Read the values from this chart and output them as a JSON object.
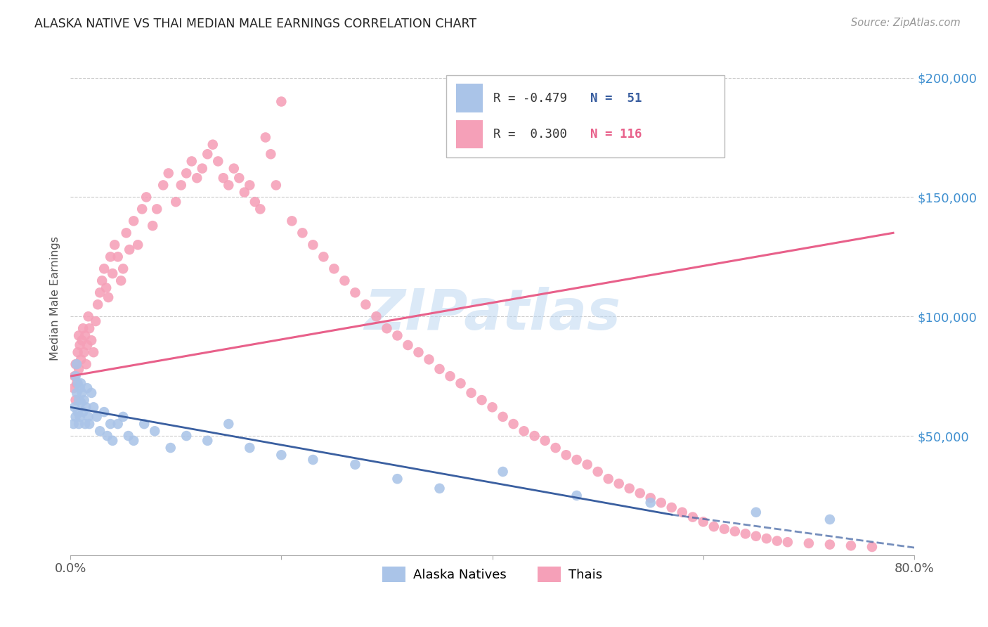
{
  "title": "ALASKA NATIVE VS THAI MEDIAN MALE EARNINGS CORRELATION CHART",
  "source": "Source: ZipAtlas.com",
  "ylabel": "Median Male Earnings",
  "watermark": "ZIPatlas",
  "legend_labels": [
    "Alaska Natives",
    "Thais"
  ],
  "legend_r_alaska": "R = -0.479",
  "legend_n_alaska": "N =  51",
  "legend_r_thai": "R =  0.300",
  "legend_n_thai": "N = 116",
  "color_alaska": "#aac4e8",
  "color_thai": "#f5a0b8",
  "color_alaska_line": "#3a5fa0",
  "color_thai_line": "#e8608a",
  "color_label_right": "#4090d0",
  "ytick_labels": [
    "$50,000",
    "$100,000",
    "$150,000",
    "$200,000"
  ],
  "ytick_values": [
    50000,
    100000,
    150000,
    200000
  ],
  "xmin": 0.0,
  "xmax": 0.8,
  "ymin": 0,
  "ymax": 215000,
  "alaska_scatter_x": [
    0.003,
    0.004,
    0.005,
    0.005,
    0.006,
    0.006,
    0.007,
    0.007,
    0.008,
    0.008,
    0.009,
    0.009,
    0.01,
    0.01,
    0.011,
    0.012,
    0.013,
    0.014,
    0.015,
    0.016,
    0.017,
    0.018,
    0.02,
    0.022,
    0.025,
    0.028,
    0.032,
    0.035,
    0.038,
    0.04,
    0.045,
    0.05,
    0.055,
    0.06,
    0.07,
    0.08,
    0.095,
    0.11,
    0.13,
    0.15,
    0.17,
    0.2,
    0.23,
    0.27,
    0.31,
    0.35,
    0.41,
    0.48,
    0.55,
    0.65,
    0.72
  ],
  "alaska_scatter_y": [
    55000,
    62000,
    75000,
    58000,
    68000,
    80000,
    72000,
    60000,
    65000,
    55000,
    70000,
    58000,
    64000,
    72000,
    68000,
    60000,
    65000,
    55000,
    62000,
    70000,
    58000,
    55000,
    68000,
    62000,
    58000,
    52000,
    60000,
    50000,
    55000,
    48000,
    55000,
    58000,
    50000,
    48000,
    55000,
    52000,
    45000,
    50000,
    48000,
    55000,
    45000,
    42000,
    40000,
    38000,
    32000,
    28000,
    35000,
    25000,
    22000,
    18000,
    15000
  ],
  "thai_scatter_x": [
    0.003,
    0.004,
    0.005,
    0.005,
    0.006,
    0.007,
    0.008,
    0.008,
    0.009,
    0.01,
    0.011,
    0.012,
    0.013,
    0.014,
    0.015,
    0.016,
    0.017,
    0.018,
    0.02,
    0.022,
    0.024,
    0.026,
    0.028,
    0.03,
    0.032,
    0.034,
    0.036,
    0.038,
    0.04,
    0.042,
    0.045,
    0.048,
    0.05,
    0.053,
    0.056,
    0.06,
    0.064,
    0.068,
    0.072,
    0.078,
    0.082,
    0.088,
    0.093,
    0.1,
    0.105,
    0.11,
    0.115,
    0.12,
    0.125,
    0.13,
    0.135,
    0.14,
    0.145,
    0.15,
    0.155,
    0.16,
    0.165,
    0.17,
    0.175,
    0.18,
    0.185,
    0.19,
    0.195,
    0.2,
    0.21,
    0.22,
    0.23,
    0.24,
    0.25,
    0.26,
    0.27,
    0.28,
    0.29,
    0.3,
    0.31,
    0.32,
    0.33,
    0.34,
    0.35,
    0.36,
    0.37,
    0.38,
    0.39,
    0.4,
    0.41,
    0.42,
    0.43,
    0.44,
    0.45,
    0.46,
    0.47,
    0.48,
    0.49,
    0.5,
    0.51,
    0.52,
    0.53,
    0.54,
    0.55,
    0.56,
    0.57,
    0.58,
    0.59,
    0.6,
    0.61,
    0.62,
    0.63,
    0.64,
    0.65,
    0.66,
    0.67,
    0.68,
    0.7,
    0.72,
    0.74,
    0.76
  ],
  "thai_scatter_y": [
    70000,
    75000,
    65000,
    80000,
    72000,
    85000,
    78000,
    92000,
    88000,
    82000,
    90000,
    95000,
    85000,
    92000,
    80000,
    88000,
    100000,
    95000,
    90000,
    85000,
    98000,
    105000,
    110000,
    115000,
    120000,
    112000,
    108000,
    125000,
    118000,
    130000,
    125000,
    115000,
    120000,
    135000,
    128000,
    140000,
    130000,
    145000,
    150000,
    138000,
    145000,
    155000,
    160000,
    148000,
    155000,
    160000,
    165000,
    158000,
    162000,
    168000,
    172000,
    165000,
    158000,
    155000,
    162000,
    158000,
    152000,
    155000,
    148000,
    145000,
    175000,
    168000,
    155000,
    190000,
    140000,
    135000,
    130000,
    125000,
    120000,
    115000,
    110000,
    105000,
    100000,
    95000,
    92000,
    88000,
    85000,
    82000,
    78000,
    75000,
    72000,
    68000,
    65000,
    62000,
    58000,
    55000,
    52000,
    50000,
    48000,
    45000,
    42000,
    40000,
    38000,
    35000,
    32000,
    30000,
    28000,
    26000,
    24000,
    22000,
    20000,
    18000,
    16000,
    14000,
    12000,
    11000,
    10000,
    9000,
    8000,
    7000,
    6000,
    5500,
    5000,
    4500,
    4000,
    3500
  ]
}
